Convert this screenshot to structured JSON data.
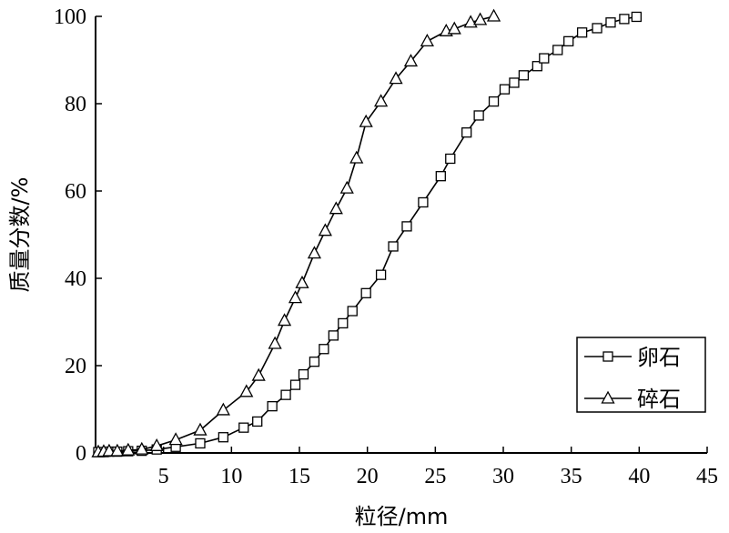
{
  "chart_data": {
    "type": "line",
    "xlabel": "粒径/mm",
    "ylabel": "质量分数/%",
    "xlim": [
      0,
      45
    ],
    "ylim": [
      0,
      100
    ],
    "xticks": [
      5,
      10,
      15,
      20,
      25,
      30,
      35,
      40,
      45
    ],
    "yticks": [
      0,
      20,
      40,
      60,
      80,
      100
    ],
    "grid": false,
    "legend_position": "bottom-right",
    "series": [
      {
        "name": "卵石",
        "marker": "square",
        "color": "#000000",
        "x": [
          0.2,
          0.6,
          1.0,
          1.6,
          2.4,
          3.4,
          4.5,
          5.9,
          7.7,
          9.4,
          10.9,
          11.9,
          13.0,
          14.0,
          14.7,
          15.3,
          16.1,
          16.8,
          17.5,
          18.2,
          18.9,
          19.9,
          21.0,
          21.9,
          22.9,
          24.1,
          25.4,
          26.1,
          27.3,
          28.2,
          29.3,
          30.1,
          30.8,
          31.5,
          32.5,
          33.0,
          34.0,
          34.8,
          35.8,
          36.9,
          37.9,
          38.9,
          39.8
        ],
        "y": [
          0.2,
          0.2,
          0.3,
          0.3,
          0.4,
          0.5,
          0.8,
          1.4,
          2.2,
          3.6,
          5.8,
          7.2,
          10.7,
          13.3,
          15.6,
          18.0,
          20.9,
          23.8,
          26.9,
          29.7,
          32.5,
          36.6,
          40.8,
          47.3,
          51.9,
          57.4,
          63.4,
          67.4,
          73.4,
          77.3,
          80.5,
          83.3,
          84.8,
          86.5,
          88.6,
          90.4,
          92.3,
          94.3,
          96.3,
          97.3,
          98.6,
          99.4,
          99.9
        ]
      },
      {
        "name": "碎石",
        "marker": "triangle",
        "color": "#000000",
        "x": [
          0.2,
          0.6,
          1.0,
          1.6,
          2.4,
          3.4,
          4.5,
          5.9,
          7.7,
          9.4,
          11.1,
          12.0,
          13.2,
          13.9,
          14.7,
          15.2,
          16.1,
          16.9,
          17.7,
          18.5,
          19.2,
          19.9,
          21.0,
          22.1,
          23.2,
          24.4,
          25.8,
          26.4,
          27.6,
          28.3,
          29.3
        ],
        "y": [
          0.2,
          0.3,
          0.4,
          0.4,
          0.6,
          0.8,
          1.6,
          3.0,
          5.2,
          9.8,
          14.0,
          17.7,
          25.0,
          30.3,
          35.5,
          38.9,
          45.7,
          50.9,
          55.9,
          60.6,
          67.5,
          75.8,
          80.5,
          85.7,
          89.7,
          94.3,
          96.6,
          97.1,
          98.6,
          99.2,
          100.0
        ]
      }
    ]
  }
}
